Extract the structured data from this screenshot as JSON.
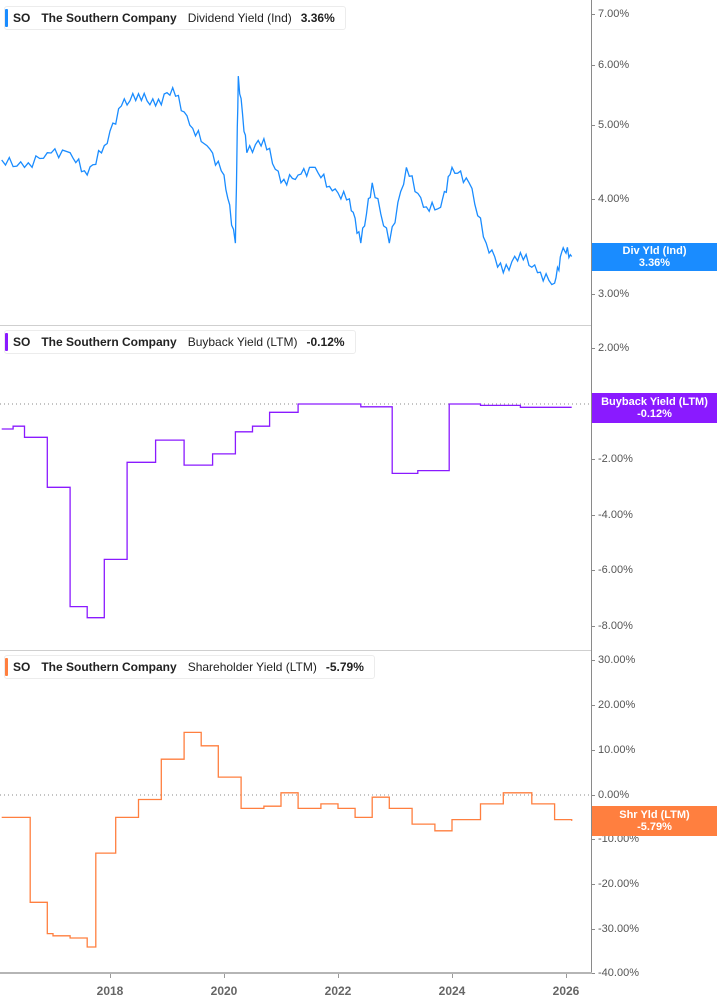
{
  "header": {
    "panels": [
      {
        "ticker": "SO",
        "company": "The Southern Company",
        "metric": "Dividend Yield (Ind)",
        "value": "3.36%",
        "color": "#1a8cff",
        "badge": {
          "line1": "Div Yld (Ind)",
          "line2": "3.36%"
        }
      },
      {
        "ticker": "SO",
        "company": "The Southern Company",
        "metric": "Buyback Yield (LTM)",
        "value": "-0.12%",
        "color": "#8a1aff",
        "badge": {
          "line1": "Buyback Yield (LTM)",
          "line2": "-0.12%"
        }
      },
      {
        "ticker": "SO",
        "company": "The Southern Company",
        "metric": "Shareholder Yield (LTM)",
        "value": "-5.79%",
        "color": "#ff7f3f",
        "badge": {
          "line1": "Shr Yld (LTM)",
          "line2": "-5.79%"
        }
      }
    ]
  },
  "axes": {
    "panel1_y": [
      "7.00%",
      "6.00%",
      "5.00%",
      "4.00%",
      "3.00%"
    ],
    "panel2_y": [
      "2.00%",
      "-2.00%",
      "-4.00%",
      "-6.00%",
      "-8.00%"
    ],
    "panel3_y": [
      "30.00%",
      "20.00%",
      "10.00%",
      "0.00%",
      "-10.00%",
      "-20.00%",
      "-30.00%",
      "-40.00%"
    ],
    "x": [
      "2018",
      "2020",
      "2022",
      "2024",
      "2026"
    ]
  },
  "chart_data": [
    {
      "type": "line",
      "title": "SO The Southern Company Dividend Yield (Ind)",
      "xlabel": "",
      "ylabel": "Dividend Yield (%)",
      "yscale": "log",
      "ylim": [
        2.6,
        7.2
      ],
      "x_ticks": [
        "2018",
        "2020",
        "2022",
        "2024",
        "2026"
      ],
      "yticks": [
        "3.00%",
        "4.00%",
        "5.00%",
        "6.00%",
        "7.00%"
      ],
      "grid": false,
      "series": [
        {
          "name": "Div Yld (Ind)",
          "color": "#1a8cff",
          "x": [
            2016.1,
            2016.5,
            2016.9,
            2017.3,
            2017.6,
            2017.9,
            2018.2,
            2018.5,
            2018.8,
            2019.1,
            2019.4,
            2019.7,
            2020.0,
            2020.2,
            2020.25,
            2020.4,
            2020.7,
            2021.0,
            2021.3,
            2021.6,
            2021.9,
            2022.2,
            2022.4,
            2022.6,
            2022.9,
            2023.2,
            2023.5,
            2023.8,
            2024.0,
            2024.3,
            2024.6,
            2024.9,
            2025.2,
            2025.5,
            2025.8,
            2025.95,
            2026.1
          ],
          "values": [
            4.5,
            4.4,
            4.6,
            4.6,
            4.3,
            4.7,
            5.3,
            5.5,
            5.3,
            5.6,
            5.0,
            4.7,
            4.3,
            3.5,
            5.8,
            4.6,
            4.8,
            4.2,
            4.3,
            4.4,
            4.1,
            4.0,
            3.5,
            4.2,
            3.5,
            4.4,
            3.9,
            3.9,
            4.4,
            4.2,
            3.5,
            3.2,
            3.4,
            3.2,
            3.1,
            3.45,
            3.36
          ]
        }
      ]
    },
    {
      "type": "line",
      "title": "SO The Southern Company Buyback Yield (LTM)",
      "xlabel": "",
      "ylabel": "Buyback Yield (%)",
      "ylim": [
        -8.5,
        2.6
      ],
      "yticks": [
        "-8.00%",
        "-6.00%",
        "-4.00%",
        "-2.00%",
        "2.00%"
      ],
      "grid": false,
      "series": [
        {
          "name": "Buyback Yield (LTM)",
          "color": "#8a1aff",
          "x": [
            2016.1,
            2016.3,
            2016.5,
            2016.9,
            2017.3,
            2017.6,
            2017.9,
            2018.3,
            2018.8,
            2019.3,
            2019.8,
            2020.2,
            2020.5,
            2020.8,
            2021.3,
            2021.9,
            2022.4,
            2022.9,
            2022.95,
            2023.4,
            2023.9,
            2023.95,
            2024.5,
            2025.2,
            2026.1
          ],
          "values": [
            -0.9,
            -0.8,
            -1.2,
            -3.0,
            -7.3,
            -7.7,
            -5.6,
            -2.1,
            -1.3,
            -2.2,
            -1.8,
            -1.0,
            -0.8,
            -0.3,
            0.0,
            0.0,
            -0.1,
            -0.1,
            -2.5,
            -2.4,
            -2.4,
            0.0,
            -0.05,
            -0.12,
            -0.12
          ]
        }
      ]
    },
    {
      "type": "line",
      "title": "SO The Southern Company Shareholder Yield (LTM)",
      "xlabel": "",
      "ylabel": "Shareholder Yield (%)",
      "ylim": [
        -40,
        31
      ],
      "yticks": [
        "-40.00%",
        "-30.00%",
        "-20.00%",
        "-10.00%",
        "0.00%",
        "10.00%",
        "20.00%",
        "30.00%"
      ],
      "grid": false,
      "series": [
        {
          "name": "Shr Yld (LTM)",
          "color": "#ff7f3f",
          "x": [
            2016.1,
            2016.5,
            2016.6,
            2016.9,
            2017.0,
            2017.3,
            2017.6,
            2017.75,
            2018.1,
            2018.5,
            2018.9,
            2019.3,
            2019.6,
            2019.9,
            2020.3,
            2020.7,
            2021.0,
            2021.3,
            2021.7,
            2022.0,
            2022.3,
            2022.6,
            2022.9,
            2023.3,
            2023.7,
            2024.0,
            2024.5,
            2024.9,
            2025.4,
            2025.8,
            2026.1
          ],
          "values": [
            -5.0,
            -5.0,
            -24.0,
            -31.0,
            -31.5,
            -32.0,
            -34.0,
            -13.0,
            -5.0,
            -1.0,
            8.0,
            14.0,
            11.0,
            4.0,
            -3.0,
            -2.5,
            0.5,
            -3.0,
            -2.0,
            -3.0,
            -5.0,
            -0.5,
            -3.0,
            -6.5,
            -8.0,
            -5.5,
            -2.0,
            0.5,
            -2.0,
            -5.5,
            -5.79
          ]
        }
      ]
    }
  ]
}
